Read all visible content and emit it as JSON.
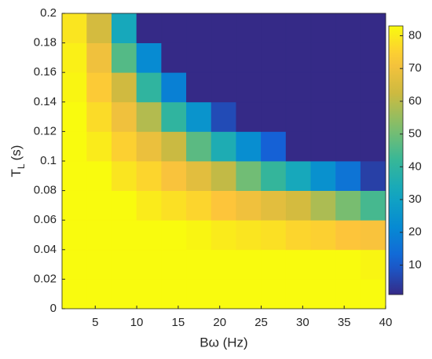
{
  "chart_data": {
    "type": "heatmap",
    "xlabel": "Bω (Hz)",
    "ylabel": {
      "main": "T",
      "subscript": "L",
      "unit": "(s)"
    },
    "x": [
      2.5,
      5.5,
      8.5,
      11.5,
      14.5,
      17.5,
      20.5,
      23.5,
      26.5,
      29.5,
      32.5,
      35.5,
      38.5
    ],
    "y": [
      0.01,
      0.03,
      0.05,
      0.07,
      0.09,
      0.11,
      0.13,
      0.15,
      0.17,
      0.19
    ],
    "z": [
      [
        83,
        83,
        83,
        83,
        83,
        83,
        83,
        83,
        83,
        83,
        83,
        83,
        83
      ],
      [
        83,
        83,
        83,
        83,
        83,
        83,
        83,
        83,
        83,
        83,
        83,
        83,
        82
      ],
      [
        83,
        83,
        83,
        83,
        83,
        82,
        80,
        79,
        78,
        76,
        75,
        73,
        72
      ],
      [
        83,
        83,
        83,
        80,
        78,
        76,
        73,
        70,
        67,
        64,
        58,
        51,
        44
      ],
      [
        83,
        83,
        79,
        76,
        72,
        67,
        61,
        50,
        41,
        33,
        24,
        16,
        5
      ],
      [
        83,
        80,
        75,
        69,
        62,
        47,
        35,
        23,
        11,
        1,
        1,
        1,
        1
      ],
      [
        83,
        77,
        70,
        59,
        40,
        25,
        7,
        1,
        1,
        1,
        1,
        1,
        1
      ],
      [
        82,
        74,
        63,
        40,
        19,
        1,
        1,
        1,
        1,
        1,
        1,
        1,
        1
      ],
      [
        81,
        70,
        46,
        22,
        1,
        1,
        1,
        1,
        1,
        1,
        1,
        1,
        1
      ],
      [
        79,
        64,
        33,
        1,
        1,
        1,
        1,
        1,
        1,
        1,
        1,
        1,
        1
      ]
    ],
    "xlim": [
      1,
      40
    ],
    "xticks": [
      5,
      10,
      15,
      20,
      25,
      30,
      35,
      40
    ],
    "ylim": [
      0,
      0.2
    ],
    "yticks": [
      0,
      0.02,
      0.04,
      0.06,
      0.08,
      0.1,
      0.12,
      0.14,
      0.16,
      0.18,
      0.2
    ],
    "clim": [
      1,
      83
    ],
    "cticks": [
      10,
      20,
      30,
      40,
      50,
      60,
      70,
      80
    ],
    "colormap": "parula"
  }
}
